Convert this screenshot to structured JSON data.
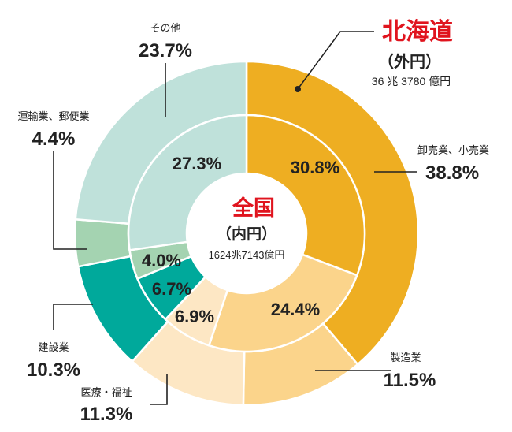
{
  "chart_data": {
    "type": "pie",
    "series": [
      {
        "name": "全国",
        "subtitle": "（内円）",
        "total": "1624兆7143億円",
        "values": [
          30.8,
          24.4,
          6.9,
          6.7,
          4.0,
          27.3
        ],
        "value_labels": [
          "30.8%",
          "24.4%",
          "6.9%",
          "6.7%",
          "4.0%",
          "27.3%"
        ]
      },
      {
        "name": "北海道",
        "subtitle": "（外円）",
        "total": "36 兆 3780 億円",
        "values": [
          38.8,
          11.5,
          11.3,
          10.3,
          4.4,
          23.7
        ],
        "value_labels": [
          "38.8%",
          "11.5%",
          "11.3%",
          "10.3%",
          "4.4%",
          "23.7%"
        ]
      }
    ],
    "categories": [
      "卸売業、小売業",
      "製造業",
      "医療・福祉",
      "建設業",
      "運輸業、郵便業",
      "その他"
    ],
    "colors": {
      "outer": [
        "#eeae22",
        "#fbd48b",
        "#fde7c4",
        "#00a99b",
        "#a4d3b1",
        "#bfe1da"
      ],
      "inner": [
        "#eeae22",
        "#fbd48b",
        "#fde7c4",
        "#00a99b",
        "#a4d3b1",
        "#bfe1da"
      ],
      "title_red": "#e0141e"
    }
  }
}
